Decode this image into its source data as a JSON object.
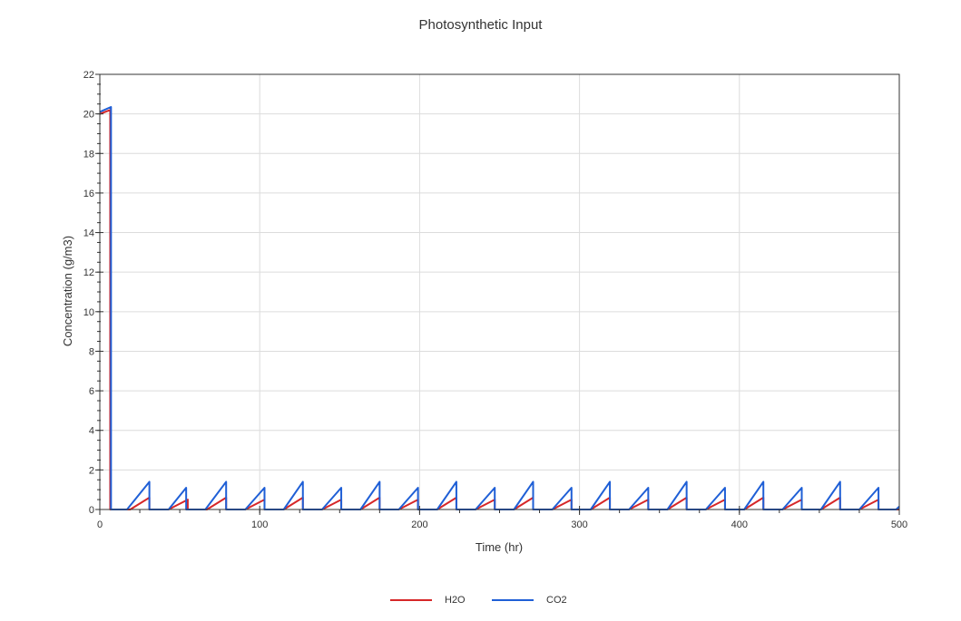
{
  "chart_data": {
    "type": "line",
    "title": "Photosynthetic Input",
    "xlabel": "Time (hr)",
    "ylabel": "Concentration (g/m3)",
    "xlim": [
      0,
      500
    ],
    "ylim": [
      0,
      22
    ],
    "xticks": [
      0,
      100,
      200,
      300,
      400,
      500
    ],
    "yticks": [
      0,
      2,
      4,
      6,
      8,
      10,
      12,
      14,
      16,
      18,
      20,
      22
    ],
    "grid": true,
    "legend_position": "bottom",
    "series": [
      {
        "name": "H2O",
        "color": "#d62728",
        "points": [
          [
            0,
            20
          ],
          [
            6.5,
            20.2
          ],
          [
            6.5,
            0
          ],
          [
            19,
            0
          ],
          [
            31,
            0.6
          ],
          [
            31,
            0
          ],
          [
            43,
            0
          ],
          [
            55,
            0.5
          ],
          [
            55,
            0
          ],
          [
            67,
            0
          ],
          [
            79,
            0.6
          ],
          [
            79,
            0
          ],
          [
            91,
            0
          ],
          [
            103,
            0.5
          ],
          [
            103,
            0
          ],
          [
            115,
            0
          ],
          [
            127,
            0.6
          ],
          [
            127,
            0
          ],
          [
            139,
            0
          ],
          [
            151,
            0.5
          ],
          [
            151,
            0
          ],
          [
            163,
            0
          ],
          [
            175,
            0.6
          ],
          [
            175,
            0
          ],
          [
            187,
            0
          ],
          [
            199,
            0.5
          ],
          [
            199,
            0
          ],
          [
            211,
            0
          ],
          [
            223,
            0.6
          ],
          [
            223,
            0
          ],
          [
            235,
            0
          ],
          [
            247,
            0.5
          ],
          [
            247,
            0
          ],
          [
            259,
            0
          ],
          [
            271,
            0.6
          ],
          [
            271,
            0
          ],
          [
            283,
            0
          ],
          [
            295,
            0.5
          ],
          [
            295,
            0
          ],
          [
            307,
            0
          ],
          [
            319,
            0.6
          ],
          [
            319,
            0
          ],
          [
            331,
            0
          ],
          [
            343,
            0.5
          ],
          [
            343,
            0
          ],
          [
            355,
            0
          ],
          [
            367,
            0.6
          ],
          [
            367,
            0
          ],
          [
            379,
            0
          ],
          [
            391,
            0.5
          ],
          [
            391,
            0
          ],
          [
            403,
            0
          ],
          [
            415,
            0.6
          ],
          [
            415,
            0
          ],
          [
            427,
            0
          ],
          [
            439,
            0.5
          ],
          [
            439,
            0
          ],
          [
            451,
            0
          ],
          [
            463,
            0.6
          ],
          [
            463,
            0
          ],
          [
            475,
            0
          ],
          [
            487,
            0.5
          ],
          [
            487,
            0
          ],
          [
            500,
            0
          ]
        ]
      },
      {
        "name": "CO2",
        "color": "#1f5fd6",
        "points": [
          [
            0,
            20.1
          ],
          [
            7,
            20.35
          ],
          [
            7,
            0
          ],
          [
            17,
            0
          ],
          [
            31,
            1.4
          ],
          [
            31,
            0
          ],
          [
            43,
            0
          ],
          [
            54,
            1.1
          ],
          [
            54,
            0
          ],
          [
            66,
            0
          ],
          [
            79,
            1.4
          ],
          [
            79,
            0
          ],
          [
            91,
            0
          ],
          [
            103,
            1.1
          ],
          [
            103,
            0
          ],
          [
            115,
            0
          ],
          [
            127,
            1.4
          ],
          [
            127,
            0
          ],
          [
            139,
            0
          ],
          [
            151,
            1.1
          ],
          [
            151,
            0
          ],
          [
            163,
            0
          ],
          [
            175,
            1.4
          ],
          [
            175,
            0
          ],
          [
            187,
            0
          ],
          [
            199,
            1.1
          ],
          [
            199,
            0
          ],
          [
            211,
            0
          ],
          [
            223,
            1.4
          ],
          [
            223,
            0
          ],
          [
            235,
            0
          ],
          [
            247,
            1.1
          ],
          [
            247,
            0
          ],
          [
            259,
            0
          ],
          [
            271,
            1.4
          ],
          [
            271,
            0
          ],
          [
            283,
            0
          ],
          [
            295,
            1.1
          ],
          [
            295,
            0
          ],
          [
            307,
            0
          ],
          [
            319,
            1.4
          ],
          [
            319,
            0
          ],
          [
            331,
            0
          ],
          [
            343,
            1.1
          ],
          [
            343,
            0
          ],
          [
            355,
            0
          ],
          [
            367,
            1.4
          ],
          [
            367,
            0
          ],
          [
            379,
            0
          ],
          [
            391,
            1.1
          ],
          [
            391,
            0
          ],
          [
            403,
            0
          ],
          [
            415,
            1.4
          ],
          [
            415,
            0
          ],
          [
            427,
            0
          ],
          [
            439,
            1.1
          ],
          [
            439,
            0
          ],
          [
            451,
            0
          ],
          [
            463,
            1.4
          ],
          [
            463,
            0
          ],
          [
            475,
            0
          ],
          [
            487,
            1.1
          ],
          [
            487,
            0
          ],
          [
            498,
            0
          ],
          [
            500,
            0.15
          ]
        ]
      }
    ]
  }
}
